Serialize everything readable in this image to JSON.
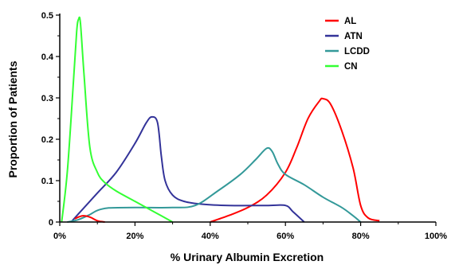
{
  "chart_data": {
    "type": "line",
    "xlabel": "% Urinary Albumin Excretion",
    "ylabel": "Proportion of Patients",
    "xlim": [
      0,
      100
    ],
    "ylim": [
      0,
      0.5
    ],
    "x_ticks": [
      "0%",
      "20%",
      "40%",
      "60%",
      "80%",
      "100%"
    ],
    "y_ticks": [
      "0",
      "0.1",
      "0.2",
      "0.3",
      "0.4",
      "0.5"
    ],
    "grid": false,
    "legend_position": "top-right",
    "series": [
      {
        "name": "AL",
        "color": "#ff0000",
        "points": [
          [
            40,
            0
          ],
          [
            45,
            0.016
          ],
          [
            50,
            0.035
          ],
          [
            55,
            0.065
          ],
          [
            60,
            0.12
          ],
          [
            63,
            0.18
          ],
          [
            66,
            0.25
          ],
          [
            69,
            0.292
          ],
          [
            70,
            0.298
          ],
          [
            72,
            0.285
          ],
          [
            75,
            0.22
          ],
          [
            78,
            0.13
          ],
          [
            80,
            0.04
          ],
          [
            82,
            0.01
          ],
          [
            85,
            0.003
          ]
        ]
      },
      {
        "name": "ATN",
        "color": "#333399",
        "points": [
          [
            3,
            0
          ],
          [
            5,
            0.02
          ],
          [
            10,
            0.07
          ],
          [
            15,
            0.12
          ],
          [
            20,
            0.19
          ],
          [
            23,
            0.24
          ],
          [
            24.5,
            0.254
          ],
          [
            26,
            0.24
          ],
          [
            27,
            0.16
          ],
          [
            28,
            0.1
          ],
          [
            30,
            0.065
          ],
          [
            33,
            0.05
          ],
          [
            38,
            0.043
          ],
          [
            45,
            0.04
          ],
          [
            55,
            0.04
          ],
          [
            60,
            0.04
          ],
          [
            62,
            0.025
          ],
          [
            65,
            0
          ]
        ]
      },
      {
        "name": "LCDD",
        "color": "#339999",
        "points": [
          [
            2,
            0
          ],
          [
            5,
            0.006
          ],
          [
            8,
            0.018
          ],
          [
            10,
            0.028
          ],
          [
            13,
            0.034
          ],
          [
            20,
            0.035
          ],
          [
            30,
            0.035
          ],
          [
            36,
            0.04
          ],
          [
            42,
            0.075
          ],
          [
            48,
            0.115
          ],
          [
            52,
            0.15
          ],
          [
            55,
            0.178
          ],
          [
            56.5,
            0.17
          ],
          [
            58,
            0.14
          ],
          [
            60,
            0.115
          ],
          [
            65,
            0.09
          ],
          [
            70,
            0.06
          ],
          [
            75,
            0.035
          ],
          [
            78,
            0.015
          ],
          [
            80,
            0
          ]
        ]
      },
      {
        "name": "CN",
        "color": "#33ff33",
        "points": [
          [
            0.5,
            0
          ],
          [
            2,
            0.12
          ],
          [
            3.5,
            0.32
          ],
          [
            4.5,
            0.46
          ],
          [
            5,
            0.49
          ],
          [
            5.5,
            0.48
          ],
          [
            6.5,
            0.35
          ],
          [
            8,
            0.18
          ],
          [
            10,
            0.12
          ],
          [
            12,
            0.095
          ],
          [
            15,
            0.075
          ],
          [
            20,
            0.05
          ],
          [
            25,
            0.025
          ],
          [
            30,
            0
          ]
        ]
      },
      {
        "name": "",
        "color": "#ff0000",
        "points": [
          [
            4,
            0.008
          ],
          [
            6,
            0.015
          ],
          [
            8,
            0.012
          ],
          [
            10,
            0.003
          ],
          [
            12,
            0
          ]
        ]
      }
    ]
  }
}
